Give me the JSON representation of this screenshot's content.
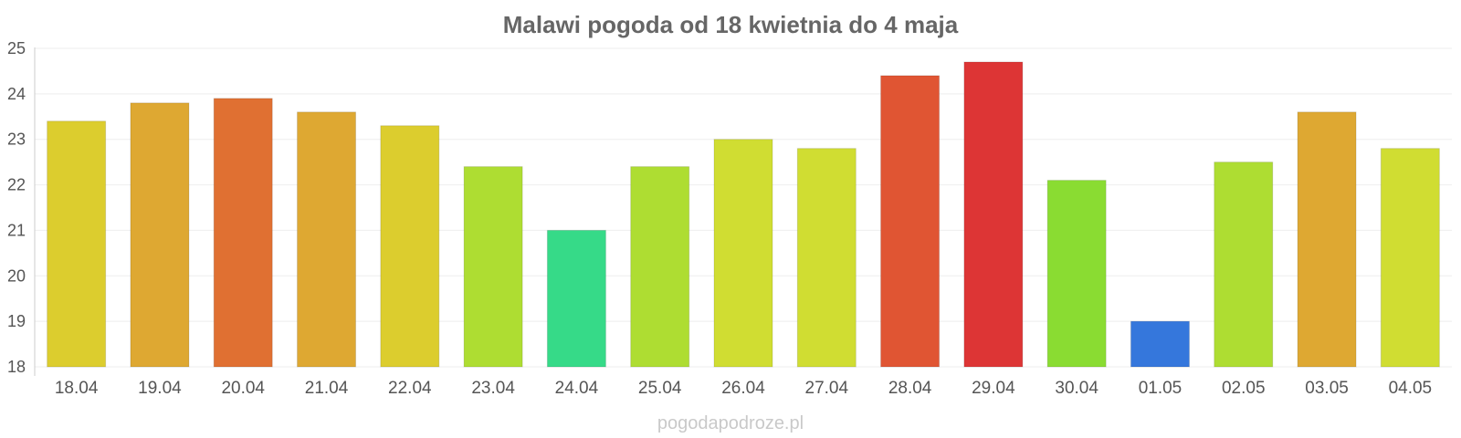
{
  "chart_data": {
    "type": "bar",
    "title": "Malawi pogoda od 18 kwietnia do 4 maja",
    "xlabel": "",
    "ylabel": "",
    "ylim": [
      18,
      25
    ],
    "yticks": [
      "18",
      "19",
      "20",
      "21",
      "22",
      "23",
      "24",
      "25"
    ],
    "grid": true,
    "categories": [
      "18.04",
      "19.04",
      "20.04",
      "21.04",
      "22.04",
      "23.04",
      "24.04",
      "25.04",
      "26.04",
      "27.04",
      "28.04",
      "29.04",
      "30.04",
      "01.05",
      "02.05",
      "03.05",
      "04.05"
    ],
    "values": [
      23.4,
      23.8,
      23.9,
      23.6,
      23.3,
      22.4,
      21.0,
      22.4,
      23.0,
      22.8,
      24.4,
      24.7,
      22.1,
      19.0,
      22.5,
      23.6,
      22.8
    ],
    "colors": [
      "#dccd2e",
      "#dea832",
      "#e07032",
      "#dea832",
      "#dccd2e",
      "#aedd32",
      "#36da88",
      "#aedd32",
      "#d0dd32",
      "#d0dd32",
      "#e05533",
      "#dd3535",
      "#8adc32",
      "#3577dc",
      "#aedd32",
      "#dea832",
      "#d0dd32"
    ]
  },
  "watermark": "pogodapodroze.pl"
}
